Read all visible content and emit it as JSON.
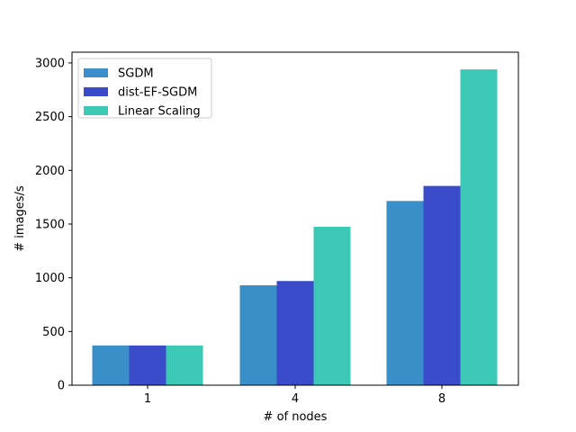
{
  "chart_data": {
    "type": "bar",
    "title": "",
    "xlabel": "# of nodes",
    "ylabel": "# images/s",
    "categories": [
      "1",
      "4",
      "8"
    ],
    "series": [
      {
        "name": "SGDM",
        "color": "#3a8fc8",
        "values": [
          370,
          930,
          1715
        ]
      },
      {
        "name": "dist-EF-SGDM",
        "color": "#3a4bc9",
        "values": [
          370,
          970,
          1855
        ]
      },
      {
        "name": "Linear Scaling",
        "color": "#3bc9b6",
        "values": [
          370,
          1475,
          2940
        ]
      }
    ],
    "ylim": [
      0,
      3100
    ],
    "yticks": [
      0,
      500,
      1000,
      1500,
      2000,
      2500,
      3000
    ],
    "yticklabels": [
      "0",
      "500",
      "1000",
      "1500",
      "2000",
      "2500",
      "3000"
    ],
    "grid": false,
    "legend": {
      "position": "top-left"
    }
  }
}
